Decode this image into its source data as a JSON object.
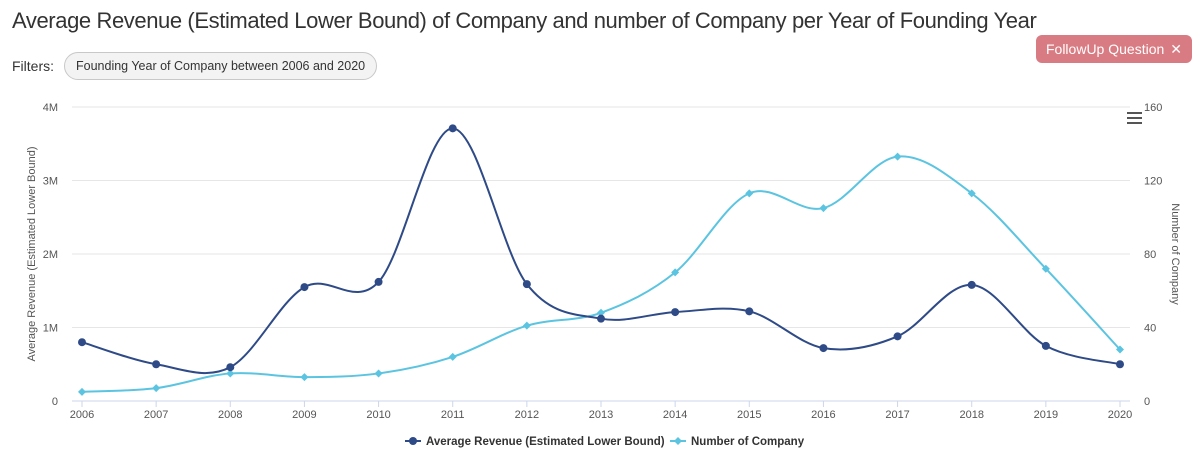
{
  "header": {
    "title": "Average Revenue (Estimated Lower Bound) of Company and number of Company per Year of Founding Year",
    "filters_label": "Filters:",
    "filter_chip": "Founding Year of Company between 2006 and 2020",
    "followup_label": "FollowUp Question",
    "followup_icon": "close-icon",
    "menu_icon": "hamburger-menu-icon"
  },
  "chart_data": {
    "type": "line",
    "title": "Average Revenue (Estimated Lower Bound) of Company and number of Company per Year of Founding Year",
    "x": [
      "2006",
      "2007",
      "2008",
      "2009",
      "2010",
      "2011",
      "2012",
      "2013",
      "2014",
      "2015",
      "2016",
      "2017",
      "2018",
      "2019",
      "2020"
    ],
    "y_left": {
      "label": "Average Revenue (Estimated Lower Bound)",
      "range": [
        0,
        4000000
      ],
      "ticks": [
        "0",
        "1M",
        "2M",
        "3M",
        "4M"
      ]
    },
    "y_right": {
      "label": "Number of Company",
      "range": [
        0,
        160
      ],
      "ticks": [
        "0",
        "40",
        "80",
        "120",
        "160"
      ]
    },
    "grid": true,
    "legend": "bottom",
    "series": [
      {
        "name": "Average Revenue (Estimated Lower Bound)",
        "axis": "left",
        "color": "#2e4a87",
        "marker": "circle",
        "values": [
          800000,
          500000,
          460000,
          1550000,
          1620000,
          3710000,
          1590000,
          1120000,
          1210000,
          1220000,
          720000,
          880000,
          1580000,
          750000,
          500000
        ]
      },
      {
        "name": "Number of Company",
        "axis": "right",
        "color": "#5bc4e0",
        "marker": "diamond",
        "values": [
          5,
          7,
          15,
          13,
          15,
          24,
          41,
          48,
          70,
          113,
          105,
          133,
          113,
          72,
          28
        ]
      }
    ]
  }
}
